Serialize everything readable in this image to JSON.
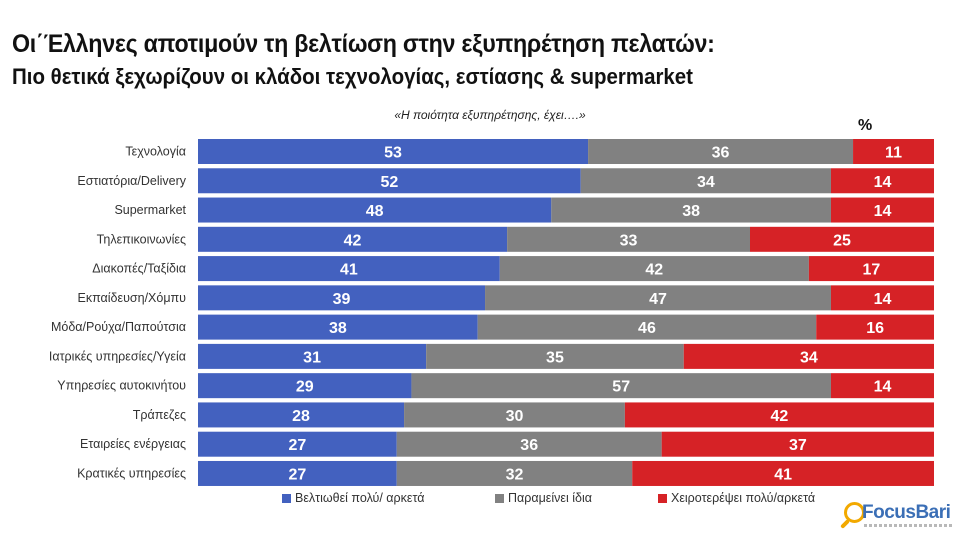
{
  "header": {
    "title": "Οι΄Έλληνες αποτιμούν τη βελτίωση στην εξυπηρέτηση πελατών:",
    "subtitle": "Πιο θετικά ξεχωρίζουν οι κλάδοι τεχνολογίας, εστίασης & supermarket",
    "question": "«Η ποιότητα εξυπηρέτησης, έχει….»",
    "unit_label": "%"
  },
  "logo": {
    "brand": "FocusBari"
  },
  "colors": {
    "improved": "#4361bf",
    "same": "#818181",
    "worse": "#d62226",
    "label_text": "#ffffff"
  },
  "chart_data": {
    "type": "bar",
    "orientation": "horizontal",
    "stacked": true,
    "title": "Οι΄Έλληνες αποτιμούν τη βελτίωση στην εξυπηρέτηση πελατών:",
    "subtitle": "Πιο θετικά ξεχωρίζουν οι κλάδοι τεχνολογίας, εστίασης & supermarket",
    "xlabel": "",
    "ylabel": "",
    "xlim": [
      0,
      100
    ],
    "grid": false,
    "legend_position": "bottom",
    "categories": [
      "Τεχνολογία",
      "Εστιατόρια/Delivery",
      "Supermarket",
      "Τηλεπικοινωνίες",
      "Διακοπές/Ταξίδια",
      "Εκπαίδευση/Χόμπυ",
      "Μόδα/Ρούχα/Παπούτσια",
      "Ιατρικές υπηρεσίες/Υγεία",
      "Υπηρεσίες αυτοκινήτου",
      "Τράπεζες",
      "Εταιρείες ενέργειας",
      "Κρατικές υπηρεσίες"
    ],
    "series": [
      {
        "name": "Βελτιωθεί πολύ/ αρκετά",
        "color": "#4361bf",
        "values": [
          53,
          52,
          48,
          42,
          41,
          39,
          38,
          31,
          29,
          28,
          27,
          27
        ]
      },
      {
        "name": "Παραμείνει ίδια",
        "color": "#818181",
        "values": [
          36,
          34,
          38,
          33,
          42,
          47,
          46,
          35,
          57,
          30,
          36,
          32
        ]
      },
      {
        "name": "Χειροτερέψει πολύ/αρκετά",
        "color": "#d62226",
        "values": [
          11,
          14,
          14,
          25,
          17,
          14,
          16,
          34,
          14,
          42,
          37,
          41
        ]
      }
    ]
  }
}
